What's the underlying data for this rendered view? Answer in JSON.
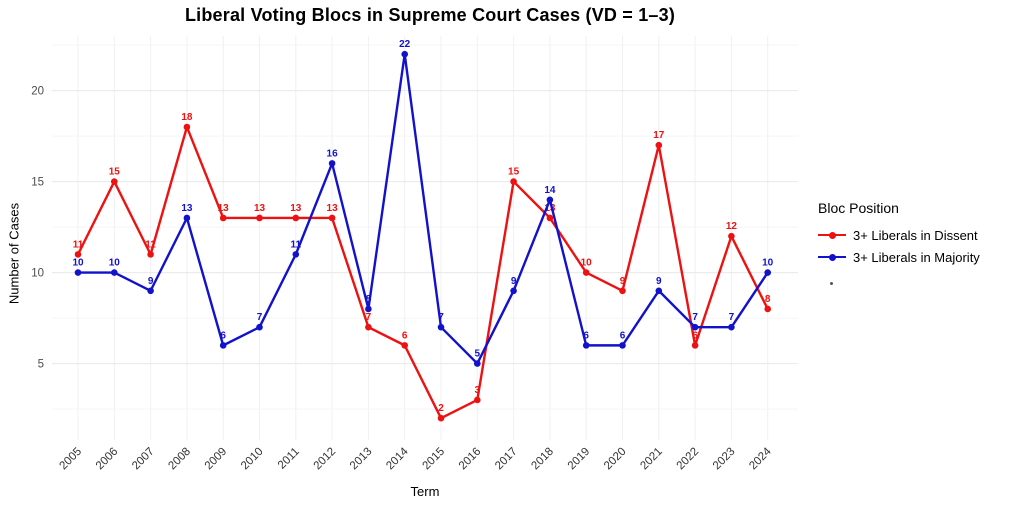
{
  "chart_data": {
    "type": "line",
    "title": "Liberal Voting Blocs in Supreme Court Cases (VD = 1–3)",
    "xlabel": "Term",
    "ylabel": "Number of Cases",
    "legend_title": "Bloc Position",
    "legend_position": "right",
    "grid": true,
    "categories": [
      "2005",
      "2006",
      "2007",
      "2008",
      "2009",
      "2010",
      "2011",
      "2012",
      "2013",
      "2014",
      "2015",
      "2016",
      "2017",
      "2018",
      "2019",
      "2020",
      "2021",
      "2022",
      "2023",
      "2024"
    ],
    "series": [
      {
        "name": "3+ Liberals in Dissent",
        "color": "#ee1111",
        "values": [
          11,
          15,
          11,
          18,
          13,
          13,
          13,
          13,
          7,
          6,
          2,
          3,
          15,
          13,
          10,
          9,
          17,
          6,
          12,
          8
        ]
      },
      {
        "name": "3+ Liberals in Majority",
        "color": "#1212cc",
        "values": [
          10,
          10,
          9,
          13,
          6,
          7,
          11,
          16,
          8,
          22,
          7,
          5,
          9,
          14,
          6,
          6,
          9,
          7,
          7,
          10
        ]
      }
    ],
    "yticks": [
      5,
      10,
      15,
      20
    ],
    "ylim": [
      0.8,
      23
    ],
    "tick_color": "#4d4d4d"
  }
}
